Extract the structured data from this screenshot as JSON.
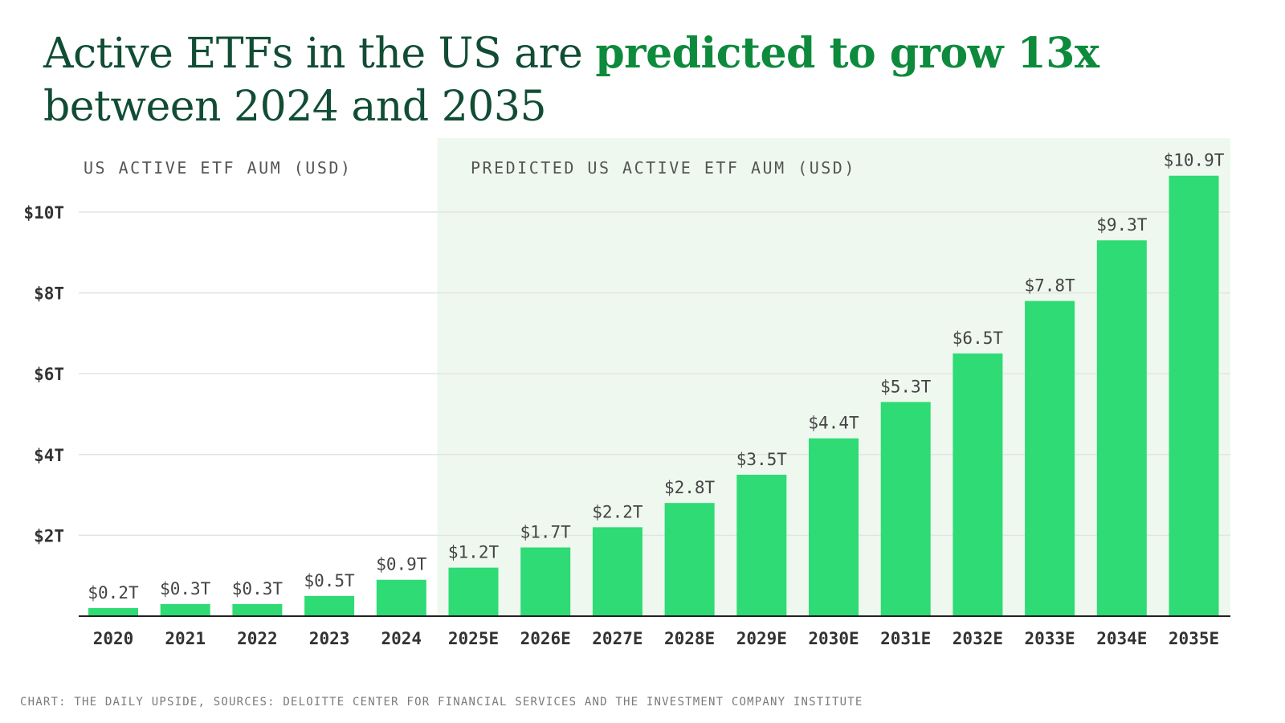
{
  "title": {
    "part1": "Active ETFs in the US are ",
    "highlight": "predicted to grow 13x",
    "part2": " between 2024 and 2035"
  },
  "source": "CHART: THE DAILY UPSIDE, SOURCES: DELOITTE CENTER FOR FINANCIAL SERVICES AND THE INVESTMENT COMPANY INSTITUTE",
  "colors": {
    "bar": "#2edb74",
    "predicted_background": "#eef8ef",
    "title": "#114d34",
    "title_highlight": "#0d8a3c",
    "grid": "#e3e3e3",
    "axis": "#222222"
  },
  "chart_data": {
    "type": "bar",
    "actual_region_label": "US ACTIVE ETF AUM (USD)",
    "predicted_region_label": "PREDICTED US ACTIVE ETF AUM (USD)",
    "predicted_start_category": "2025E",
    "categories": [
      "2020",
      "2021",
      "2022",
      "2023",
      "2024",
      "2025E",
      "2026E",
      "2027E",
      "2028E",
      "2029E",
      "2030E",
      "2031E",
      "2032E",
      "2033E",
      "2034E",
      "2035E"
    ],
    "values": [
      0.2,
      0.3,
      0.3,
      0.5,
      0.9,
      1.2,
      1.7,
      2.2,
      2.8,
      3.5,
      4.4,
      5.3,
      6.5,
      7.8,
      9.3,
      10.9
    ],
    "value_labels": [
      "$0.2T",
      "$0.3T",
      "$0.3T",
      "$0.5T",
      "$0.9T",
      "$1.2T",
      "$1.7T",
      "$2.2T",
      "$2.8T",
      "$3.5T",
      "$4.4T",
      "$5.3T",
      "$6.5T",
      "$7.8T",
      "$9.3T",
      "$10.9T"
    ],
    "yticks": [
      2,
      4,
      6,
      8,
      10
    ],
    "ytick_labels": [
      "$2T",
      "$4T",
      "$6T",
      "$8T",
      "$10T"
    ],
    "ylim": [
      0,
      12
    ],
    "grid": true
  }
}
